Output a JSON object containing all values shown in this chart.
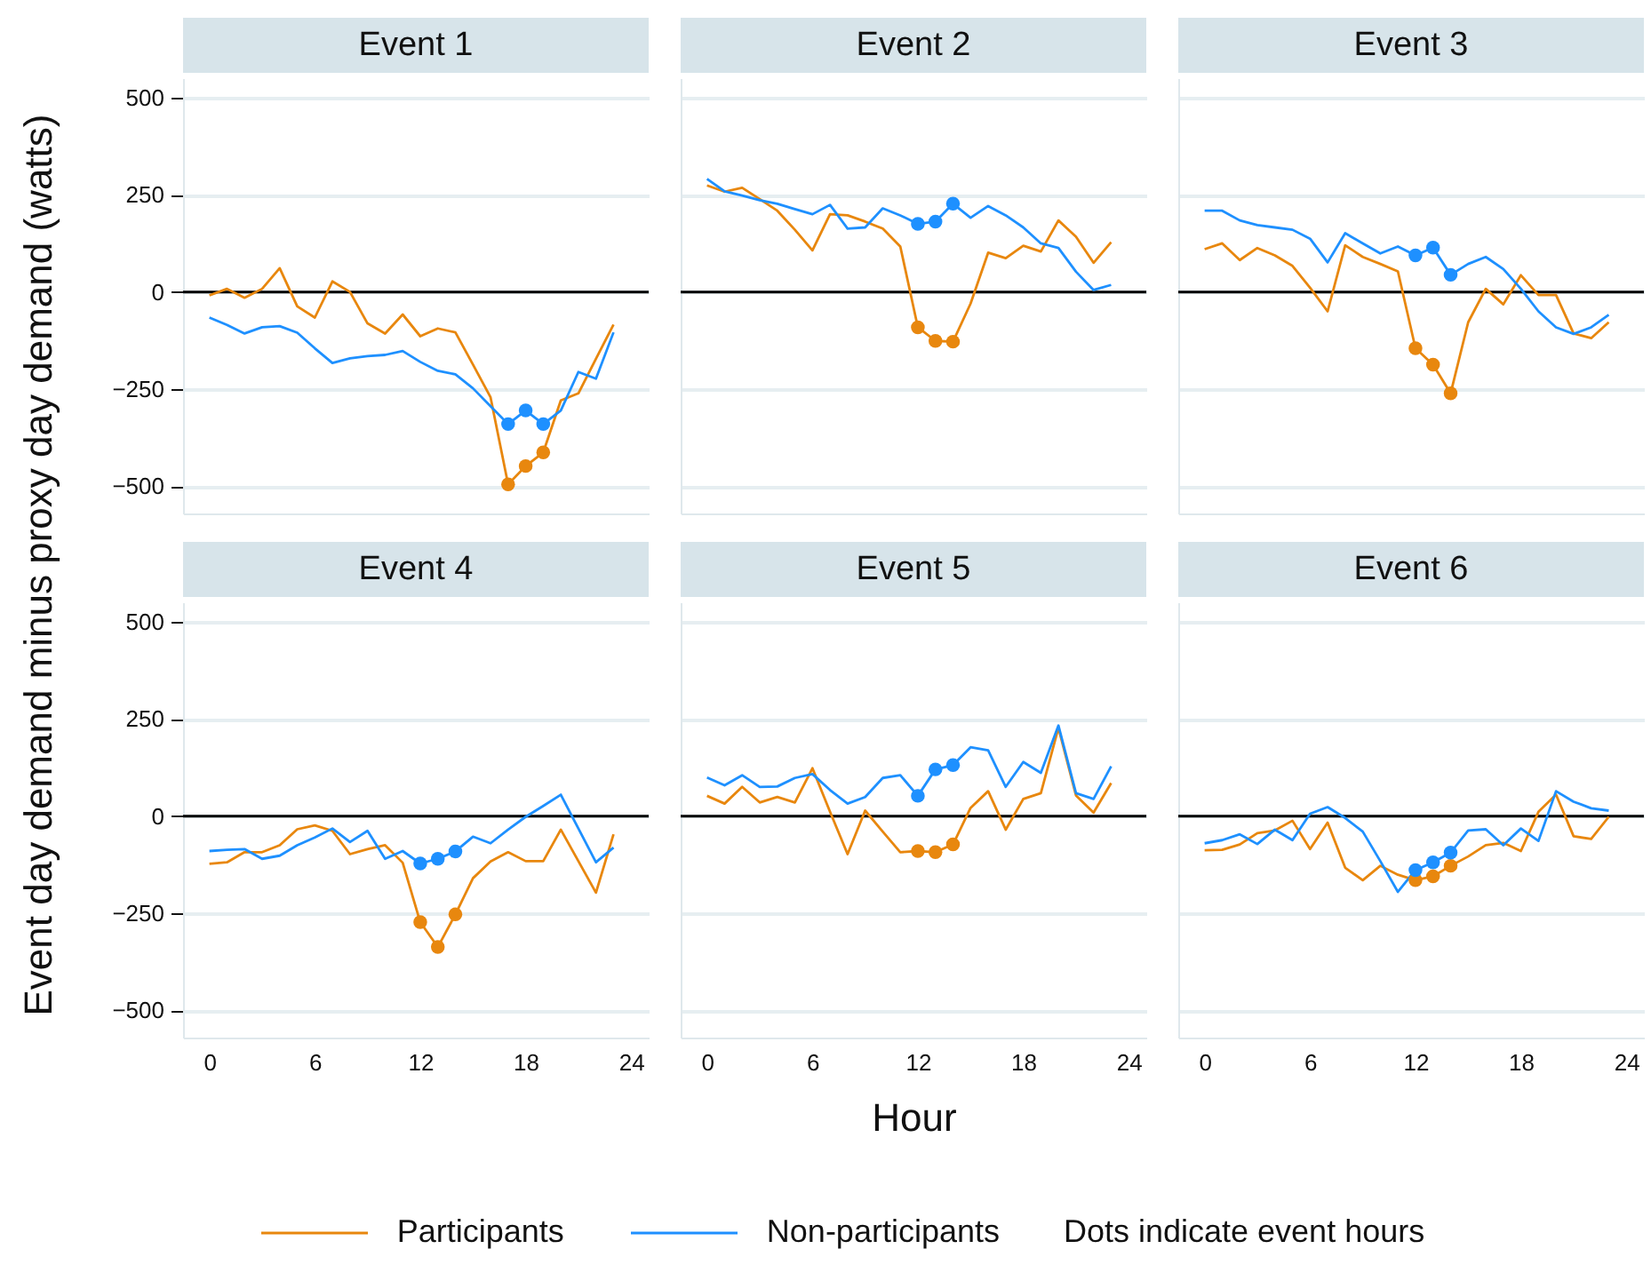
{
  "chart_data": [
    {
      "type": "line",
      "title": "Event 1",
      "ylabel": "Event day demand minus proxy day demand (watts)",
      "legend": "bottom",
      "annotations": [
        "Dots indicate event hours"
      ],
      "x": [
        0,
        1,
        2,
        3,
        4,
        5,
        6,
        7,
        8,
        9,
        10,
        11,
        12,
        13,
        14,
        15,
        16,
        17,
        18,
        19,
        20,
        21,
        22,
        23
      ],
      "xlim": [
        -1.5,
        25
      ],
      "xticks": [
        0,
        6,
        12,
        18,
        24
      ],
      "ylim": [
        -570,
        550
      ],
      "yticks": [
        -500,
        -250,
        0,
        250,
        500
      ],
      "grid": "y",
      "tick_labels": "y",
      "ref_lines": [
        {
          "axis": "y",
          "value": 0,
          "color": "#000000"
        }
      ],
      "series": [
        {
          "name": "Participants",
          "type": "line",
          "color": "#e8870e",
          "values": [
            -9,
            8,
            -15,
            8,
            61,
            -37,
            -66,
            27,
            0,
            -81,
            -107,
            -58,
            -114,
            -94,
            -104,
            -187,
            -271,
            -495,
            -448,
            -413,
            -279,
            -261,
            -172,
            -84
          ]
        },
        {
          "name": "Non-participants",
          "type": "line",
          "color": "#1e90ff",
          "values": [
            -66,
            -85,
            -107,
            -91,
            -88,
            -105,
            -145,
            -183,
            -171,
            -165,
            -162,
            -152,
            -180,
            -203,
            -212,
            -248,
            -294,
            -340,
            -305,
            -340,
            -305,
            -206,
            -223,
            -104
          ]
        },
        {
          "type": "scatter",
          "marker": "circle",
          "color": "#e8870e",
          "x": [
            17,
            18,
            19
          ],
          "values": [
            -495,
            -448,
            -413
          ]
        },
        {
          "type": "scatter",
          "marker": "circle",
          "color": "#1e90ff",
          "x": [
            17,
            18,
            19
          ],
          "values": [
            -340,
            -305,
            -340
          ]
        }
      ]
    },
    {
      "type": "line",
      "title": "Event 2",
      "x": [
        0,
        1,
        2,
        3,
        4,
        5,
        6,
        7,
        8,
        9,
        10,
        11,
        12,
        13,
        14,
        15,
        16,
        17,
        18,
        19,
        20,
        21,
        22,
        23
      ],
      "xlim": [
        -1.5,
        25
      ],
      "xticks": [
        0,
        6,
        12,
        18,
        24
      ],
      "ylim": [
        -570,
        550
      ],
      "yticks": [
        -500,
        -250,
        0,
        250,
        500
      ],
      "grid": "y",
      "tick_labels": false,
      "ref_lines": [
        {
          "axis": "y",
          "value": 0,
          "color": "#000000"
        }
      ],
      "series": [
        {
          "name": "Participants",
          "type": "line",
          "color": "#e8870e",
          "values": [
            274,
            258,
            268,
            239,
            209,
            160,
            107,
            200,
            197,
            181,
            163,
            117,
            -91,
            -126,
            -128,
            -30,
            101,
            87,
            119,
            104,
            184,
            142,
            75,
            128
          ]
        },
        {
          "name": "Non-participants",
          "type": "line",
          "color": "#1e90ff",
          "values": [
            291,
            259,
            248,
            236,
            227,
            213,
            200,
            224,
            163,
            166,
            215,
            197,
            175,
            181,
            227,
            191,
            221,
            197,
            166,
            125,
            113,
            52,
            5,
            18
          ]
        },
        {
          "type": "scatter",
          "marker": "circle",
          "color": "#e8870e",
          "x": [
            12,
            13,
            14
          ],
          "values": [
            -91,
            -126,
            -128
          ]
        },
        {
          "type": "scatter",
          "marker": "circle",
          "color": "#1e90ff",
          "x": [
            12,
            13,
            14
          ],
          "values": [
            175,
            181,
            227
          ]
        }
      ]
    },
    {
      "type": "line",
      "title": "Event 3",
      "x": [
        0,
        1,
        2,
        3,
        4,
        5,
        6,
        7,
        8,
        9,
        10,
        11,
        12,
        13,
        14,
        15,
        16,
        17,
        18,
        19,
        20,
        21,
        22,
        23
      ],
      "xlim": [
        -1.5,
        25
      ],
      "xticks": [
        0,
        6,
        12,
        18,
        24
      ],
      "ylim": [
        -570,
        550
      ],
      "yticks": [
        -500,
        -250,
        0,
        250,
        500
      ],
      "grid": "y",
      "tick_labels": false,
      "ref_lines": [
        {
          "axis": "y",
          "value": 0,
          "color": "#000000"
        }
      ],
      "series": [
        {
          "name": "Participants",
          "type": "line",
          "color": "#e8870e",
          "values": [
            110,
            125,
            82,
            113,
            94,
            67,
            11,
            -50,
            120,
            90,
            72,
            53,
            -145,
            -187,
            -261,
            -78,
            8,
            -32,
            43,
            -8,
            -8,
            -107,
            -119,
            -78
          ]
        },
        {
          "name": "Non-participants",
          "type": "line",
          "color": "#1e90ff",
          "values": [
            209,
            209,
            184,
            172,
            166,
            160,
            137,
            76,
            151,
            125,
            99,
            117,
            94,
            114,
            44,
            72,
            90,
            59,
            8,
            -50,
            -91,
            -108,
            -91,
            -59
          ]
        },
        {
          "type": "scatter",
          "marker": "circle",
          "color": "#e8870e",
          "x": [
            12,
            13,
            14
          ],
          "values": [
            -145,
            -187,
            -261
          ]
        },
        {
          "type": "scatter",
          "marker": "circle",
          "color": "#1e90ff",
          "x": [
            12,
            13,
            14
          ],
          "values": [
            94,
            114,
            44
          ]
        }
      ]
    },
    {
      "type": "line",
      "title": "Event 4",
      "x": [
        0,
        1,
        2,
        3,
        4,
        5,
        6,
        7,
        8,
        9,
        10,
        11,
        12,
        13,
        14,
        15,
        16,
        17,
        18,
        19,
        20,
        21,
        22,
        23
      ],
      "xlim": [
        -1.5,
        25
      ],
      "xticks": [
        0,
        6,
        12,
        18,
        24
      ],
      "ylim": [
        -570,
        550
      ],
      "yticks": [
        -500,
        -250,
        0,
        250,
        500
      ],
      "grid": "y",
      "ref_lines": [
        {
          "axis": "y",
          "value": 0,
          "color": "#000000"
        }
      ],
      "series": [
        {
          "name": "Participants",
          "type": "line",
          "color": "#e8870e",
          "values": [
            -123,
            -119,
            -93,
            -93,
            -75,
            -34,
            -24,
            -38,
            -98,
            -85,
            -75,
            -120,
            -273,
            -337,
            -253,
            -160,
            -117,
            -93,
            -116,
            -116,
            -35,
            -116,
            -197,
            -47
          ]
        },
        {
          "name": "Non-participants",
          "type": "line",
          "color": "#1e90ff",
          "values": [
            -90,
            -87,
            -85,
            -110,
            -102,
            -75,
            -55,
            -32,
            -67,
            -38,
            -110,
            -90,
            -122,
            -110,
            -91,
            -53,
            -70,
            -35,
            -2,
            26,
            55,
            -32,
            -119,
            -81
          ]
        },
        {
          "type": "scatter",
          "marker": "circle",
          "color": "#e8870e",
          "x": [
            12,
            13,
            14
          ],
          "values": [
            -273,
            -337,
            -253
          ]
        },
        {
          "type": "scatter",
          "marker": "circle",
          "color": "#1e90ff",
          "x": [
            12,
            13,
            14
          ],
          "values": [
            -122,
            -110,
            -91
          ]
        }
      ]
    },
    {
      "type": "line",
      "title": "Event 5",
      "xlabel": "Hour",
      "x": [
        0,
        1,
        2,
        3,
        4,
        5,
        6,
        7,
        8,
        9,
        10,
        11,
        12,
        13,
        14,
        15,
        16,
        17,
        18,
        19,
        20,
        21,
        22,
        23
      ],
      "xlim": [
        -1.5,
        25
      ],
      "xticks": [
        0,
        6,
        12,
        18,
        24
      ],
      "ylim": [
        -570,
        550
      ],
      "yticks": [
        -500,
        -250,
        0,
        250,
        500
      ],
      "grid": "y",
      "tick_labels": "x",
      "ref_lines": [
        {
          "axis": "y",
          "value": 0,
          "color": "#000000"
        }
      ],
      "series": [
        {
          "name": "Participants",
          "type": "line",
          "color": "#e8870e",
          "values": [
            52,
            32,
            75,
            35,
            49,
            35,
            123,
            11,
            -98,
            14,
            -40,
            -93,
            -90,
            -93,
            -73,
            21,
            64,
            -35,
            44,
            59,
            227,
            53,
            9,
            85
          ]
        },
        {
          "name": "Non-participants",
          "type": "line",
          "color": "#1e90ff",
          "values": [
            99,
            79,
            105,
            75,
            76,
            98,
            108,
            67,
            32,
            49,
            98,
            105,
            52,
            120,
            131,
            177,
            169,
            75,
            139,
            111,
            233,
            59,
            44,
            128
          ]
        },
        {
          "type": "scatter",
          "marker": "circle",
          "color": "#e8870e",
          "x": [
            12,
            13,
            14
          ],
          "values": [
            -90,
            -93,
            -73
          ]
        },
        {
          "type": "scatter",
          "marker": "circle",
          "color": "#1e90ff",
          "x": [
            12,
            13,
            14
          ],
          "values": [
            52,
            120,
            131
          ]
        }
      ]
    },
    {
      "type": "line",
      "title": "Event 6",
      "x": [
        0,
        1,
        2,
        3,
        4,
        5,
        6,
        7,
        8,
        9,
        10,
        11,
        12,
        13,
        14,
        15,
        16,
        17,
        18,
        19,
        20,
        21,
        22,
        23
      ],
      "xlim": [
        -1.5,
        25
      ],
      "xticks": [
        0,
        6,
        12,
        18,
        24
      ],
      "ylim": [
        -570,
        550
      ],
      "yticks": [
        -500,
        -250,
        0,
        250,
        500
      ],
      "grid": "y",
      "tick_labels": "x",
      "ref_lines": [
        {
          "axis": "y",
          "value": 0,
          "color": "#000000"
        }
      ],
      "series": [
        {
          "name": "Participants",
          "type": "line",
          "color": "#e8870e",
          "values": [
            -88,
            -87,
            -73,
            -44,
            -37,
            -12,
            -85,
            -17,
            -133,
            -165,
            -128,
            -151,
            -165,
            -155,
            -128,
            -104,
            -75,
            -69,
            -90,
            11,
            55,
            -52,
            -59,
            -2
          ]
        },
        {
          "name": "Non-participants",
          "type": "line",
          "color": "#1e90ff",
          "values": [
            -70,
            -62,
            -47,
            -72,
            -35,
            -62,
            6,
            23,
            -5,
            -40,
            -116,
            -195,
            -139,
            -119,
            -94,
            -37,
            -34,
            -75,
            -32,
            -64,
            64,
            37,
            20,
            14
          ]
        },
        {
          "type": "scatter",
          "marker": "circle",
          "color": "#e8870e",
          "x": [
            12,
            13,
            14
          ],
          "values": [
            -165,
            -155,
            -128
          ]
        },
        {
          "type": "scatter",
          "marker": "circle",
          "color": "#1e90ff",
          "x": [
            12,
            13,
            14
          ],
          "values": [
            -139,
            -119,
            -94
          ]
        }
      ]
    }
  ]
}
